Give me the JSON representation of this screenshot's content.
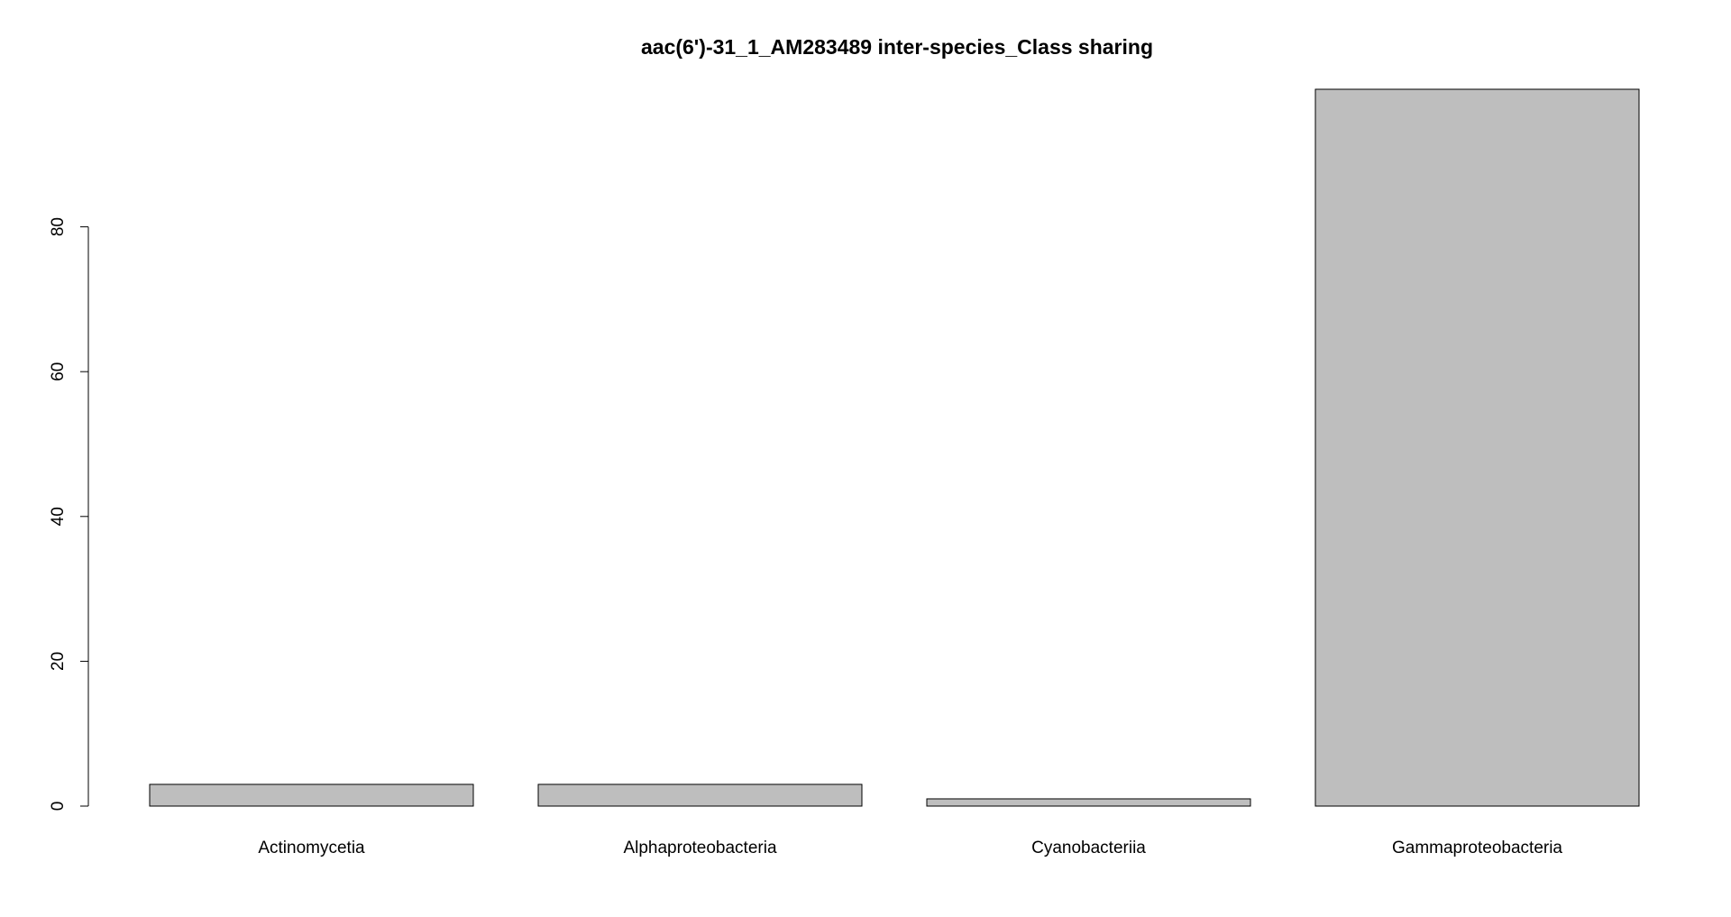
{
  "chart_data": {
    "type": "bar",
    "title": "aac(6')-31_1_AM283489 inter-species_Class sharing",
    "xlabel": "",
    "ylabel": "",
    "categories": [
      "Actinomycetia",
      "Alphaproteobacteria",
      "Cyanobacteriia",
      "Gammaproteobacteria"
    ],
    "values": [
      3,
      3,
      1,
      99
    ],
    "yticks": [
      0,
      20,
      40,
      60,
      80
    ],
    "ylim": [
      0,
      99
    ],
    "grid": false,
    "legend": "none",
    "bar_fill": "#bebebe",
    "bar_stroke": "#000000"
  }
}
